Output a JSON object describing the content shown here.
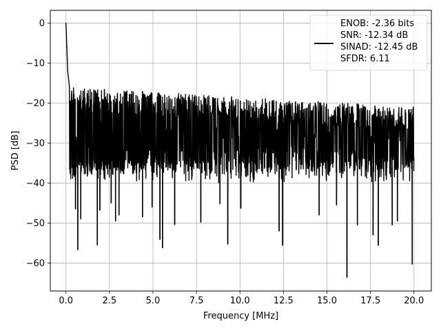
{
  "chart_data": {
    "type": "line",
    "title": "",
    "xlabel": "Frequency [MHz]",
    "ylabel": "PSD [dB]",
    "xlim": [
      -0.9,
      21.0
    ],
    "ylim": [
      -67.0,
      3.2
    ],
    "xticks": [
      0.0,
      2.5,
      5.0,
      7.5,
      10.0,
      12.5,
      15.0,
      17.5,
      20.0
    ],
    "xtick_labels": [
      "0.0",
      "2.5",
      "5.0",
      "7.5",
      "10.0",
      "12.5",
      "15.0",
      "17.5",
      "20.0"
    ],
    "yticks": [
      0,
      -10,
      -20,
      -30,
      -40,
      -50,
      -60
    ],
    "ytick_labels": [
      "0",
      "−10",
      "−20",
      "−30",
      "−40",
      "−50",
      "−60"
    ],
    "grid": true,
    "legend_position": "upper right",
    "legend_entries": [
      "ENOB: -2.36 bits",
      "SNR: -12.34 dB",
      "SINAD: -12.45 dB",
      "SFDR: 6.11"
    ],
    "series": [
      {
        "color": "#000000",
        "description_of_shape": "dense noise floor",
        "peaks": [
          {
            "x": 0.0,
            "y": 0.0
          },
          {
            "x": 0.05,
            "y": -6.0
          },
          {
            "x": 0.1,
            "y": -12.0
          },
          {
            "x": 0.2,
            "y": -16.0
          }
        ],
        "noise_floor": {
          "x_start": 0.2,
          "x_end": 20.0,
          "upper_env": -16.0,
          "upper_env_end": -21.0,
          "median": -28.5
        },
        "deep_dips": [
          {
            "x": 0.45,
            "y": -38.0
          },
          {
            "x": 0.55,
            "y": -46.5
          },
          {
            "x": 0.68,
            "y": -56.7
          },
          {
            "x": 0.85,
            "y": -49.0
          },
          {
            "x": 1.8,
            "y": -55.5
          },
          {
            "x": 1.95,
            "y": -46.8
          },
          {
            "x": 2.6,
            "y": -45.0
          },
          {
            "x": 2.85,
            "y": -49.5
          },
          {
            "x": 3.05,
            "y": -48.0
          },
          {
            "x": 4.4,
            "y": -48.5
          },
          {
            "x": 4.95,
            "y": -46.0
          },
          {
            "x": 5.4,
            "y": -54.1
          },
          {
            "x": 5.55,
            "y": -56.2
          },
          {
            "x": 6.25,
            "y": -50.4
          },
          {
            "x": 7.75,
            "y": -49.8
          },
          {
            "x": 8.85,
            "y": -45.2
          },
          {
            "x": 9.3,
            "y": -55.3
          },
          {
            "x": 10.05,
            "y": -46.3
          },
          {
            "x": 12.25,
            "y": -52.0
          },
          {
            "x": 12.45,
            "y": -55.6
          },
          {
            "x": 14.55,
            "y": -48.0
          },
          {
            "x": 15.55,
            "y": -45.5
          },
          {
            "x": 16.15,
            "y": -63.6
          },
          {
            "x": 16.75,
            "y": -50.5
          },
          {
            "x": 17.65,
            "y": -53.0
          },
          {
            "x": 17.95,
            "y": -55.6
          },
          {
            "x": 18.75,
            "y": -50.5
          },
          {
            "x": 19.05,
            "y": -49.5
          },
          {
            "x": 19.9,
            "y": -60.3
          }
        ]
      }
    ]
  }
}
